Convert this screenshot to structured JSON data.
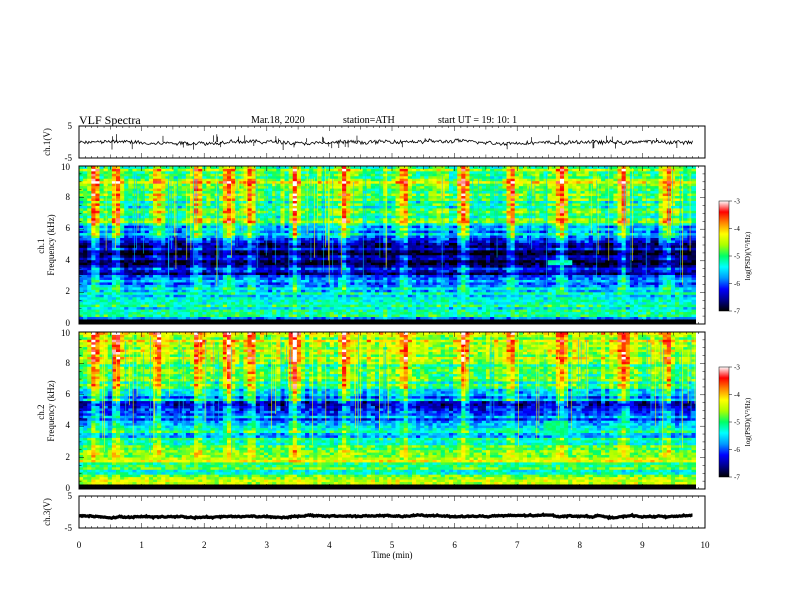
{
  "header": {
    "title": "VLF  Spectra",
    "date": "Mar.18, 2020",
    "station": "station=ATH",
    "start": "start  UT  =    19: 10: 1"
  },
  "chart_data": [
    {
      "type": "line",
      "panel": "ch1-waveform",
      "ylabel": "ch.1(V)",
      "ylim": [
        -5,
        5
      ],
      "ytick_labels": [
        "5",
        "-5"
      ],
      "xlim": [
        0,
        10
      ],
      "x_end_min": 9.8,
      "baseline_v": 0,
      "noise_amplitude_v": 1.1,
      "spike_amplitude_v": 2.5
    },
    {
      "type": "heatmap",
      "panel": "ch1-spectrogram",
      "ylabel": "ch.1\nFrequency (kHz)",
      "xlim": [
        0,
        10
      ],
      "ylim": [
        0,
        10
      ],
      "ytick_labels": [
        "0",
        "2",
        "4",
        "6",
        "8",
        "10"
      ],
      "colorbar": {
        "label": "log(PSD)(V²/Hz)",
        "range": [
          -7,
          -3
        ],
        "tick_labels": [
          "-3",
          "-4",
          "-5",
          "-6",
          "-7"
        ]
      },
      "band_profile_khz": [
        [
          0.0,
          -7.0
        ],
        [
          0.3,
          -6.2
        ],
        [
          0.6,
          -5.3
        ],
        [
          1.0,
          -5.2
        ],
        [
          1.5,
          -5.6
        ],
        [
          2.0,
          -5.4
        ],
        [
          2.5,
          -5.6
        ],
        [
          3.0,
          -6.4
        ],
        [
          3.5,
          -6.3
        ],
        [
          4.0,
          -6.8
        ],
        [
          4.5,
          -6.9
        ],
        [
          5.0,
          -6.3
        ],
        [
          5.5,
          -5.9
        ],
        [
          6.0,
          -5.8
        ],
        [
          6.5,
          -5.0
        ],
        [
          7.0,
          -5.1
        ],
        [
          8.0,
          -4.9
        ],
        [
          9.0,
          -4.6
        ],
        [
          9.9,
          -4.7
        ]
      ],
      "burst_times_min": [
        0.25,
        0.6,
        1.25,
        1.9,
        2.4,
        2.75,
        3.45,
        4.25,
        5.2,
        6.15,
        6.9,
        7.7,
        8.7,
        9.4
      ],
      "patch": {
        "t_min": [
          7.5,
          7.85
        ],
        "f_khz": [
          3.7,
          4.1
        ],
        "value": -5.2
      }
    },
    {
      "type": "heatmap",
      "panel": "ch2-spectrogram",
      "ylabel": "ch.2\nFrequency (kHz)",
      "xlim": [
        0,
        10
      ],
      "ylim": [
        0,
        10
      ],
      "ytick_labels": [
        "0",
        "2",
        "4",
        "6",
        "8",
        "10"
      ],
      "colorbar": {
        "label": "log(PSD)(V²/Hz)",
        "range": [
          -7,
          -3
        ],
        "tick_labels": [
          "-3",
          "-4",
          "-5",
          "-6",
          "-7"
        ]
      },
      "band_profile_khz": [
        [
          0.0,
          -6.6
        ],
        [
          0.3,
          -4.6
        ],
        [
          0.8,
          -4.7
        ],
        [
          1.1,
          -5.2
        ],
        [
          1.5,
          -4.9
        ],
        [
          2.0,
          -4.5
        ],
        [
          2.5,
          -5.1
        ],
        [
          3.0,
          -5.4
        ],
        [
          3.5,
          -5.5
        ],
        [
          4.0,
          -5.6
        ],
        [
          4.5,
          -5.8
        ],
        [
          5.0,
          -6.0
        ],
        [
          5.5,
          -6.1
        ],
        [
          6.0,
          -5.7
        ],
        [
          6.5,
          -5.0
        ],
        [
          7.0,
          -5.1
        ],
        [
          8.0,
          -4.9
        ],
        [
          9.0,
          -4.5
        ],
        [
          9.9,
          -4.6
        ]
      ],
      "burst_times_min": [
        0.25,
        0.6,
        1.25,
        1.9,
        2.4,
        2.75,
        3.45,
        4.25,
        5.2,
        6.15,
        6.9,
        7.7,
        8.7,
        9.4
      ],
      "patch": {
        "t_min": [
          7.45,
          7.8
        ],
        "f_khz": [
          3.5,
          4.4
        ],
        "value": -5.1
      }
    },
    {
      "type": "line",
      "panel": "ch3-waveform",
      "ylabel": "ch.3(V)",
      "ylim": [
        -5,
        5
      ],
      "ytick_labels": [
        "5",
        "-5"
      ],
      "xlim": [
        0,
        10
      ],
      "x_end_min": 9.8,
      "baseline_v": -1.3,
      "noise_amplitude_v": 0.3
    }
  ],
  "xaxis": {
    "label": "Time  (min)",
    "ticks": [
      0,
      1,
      2,
      3,
      4,
      5,
      6,
      7,
      8,
      9,
      10
    ],
    "tick_labels": [
      "0",
      "1",
      "2",
      "3",
      "4",
      "5",
      "6",
      "7",
      "8",
      "9",
      "10"
    ]
  },
  "colormap": [
    "#000000",
    "#00008b",
    "#0000ff",
    "#0099ff",
    "#00ffff",
    "#00ff66",
    "#aaff00",
    "#ffff00",
    "#ff8800",
    "#ff0000",
    "#ffffff"
  ]
}
